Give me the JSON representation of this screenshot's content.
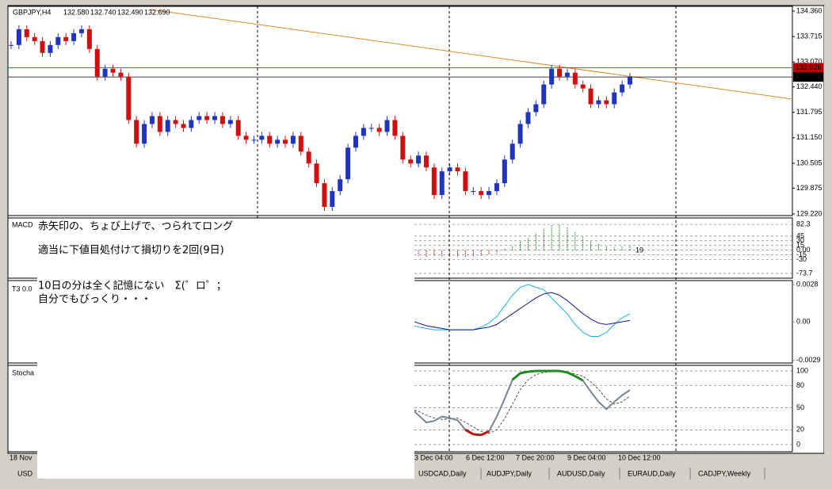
{
  "header": {
    "symbol": "GBPJPY,H4",
    "open": "132.580",
    "high": "132.740",
    "low": "132.490",
    "close": "132.690"
  },
  "main": {
    "ylim": [
      129.18,
      134.48
    ],
    "yticks": [
      {
        "value": 134.36,
        "label": "134.360"
      },
      {
        "value": 133.715,
        "label": "133.715"
      },
      {
        "value": 133.07,
        "label": "133.070"
      },
      {
        "value": 132.44,
        "label": "132.440"
      },
      {
        "value": 131.795,
        "label": "131.795"
      },
      {
        "value": 131.15,
        "label": "131.150"
      },
      {
        "value": 130.505,
        "label": "130.505"
      },
      {
        "value": 129.875,
        "label": "129.875"
      },
      {
        "value": 129.22,
        "label": "129.220"
      }
    ],
    "up_color": "#1f35c0",
    "down_color": "#d01010",
    "closes": [
      133.5,
      133.9,
      133.7,
      133.6,
      133.3,
      133.5,
      133.7,
      133.6,
      133.8,
      133.9,
      133.4,
      132.7,
      132.9,
      132.8,
      132.7,
      131.6,
      131.0,
      131.5,
      131.7,
      131.3,
      131.6,
      131.5,
      131.4,
      131.6,
      131.7,
      131.6,
      131.7,
      131.5,
      131.6,
      131.2,
      131.1,
      131.1,
      131.2,
      131.0,
      131.1,
      131.0,
      131.2,
      130.8,
      130.5,
      130.0,
      129.4,
      129.8,
      130.1,
      130.9,
      131.2,
      131.4,
      131.4,
      131.3,
      131.6,
      131.2,
      130.6,
      130.5,
      130.7,
      130.4,
      129.7,
      130.3,
      130.4,
      130.3,
      129.8,
      129.8,
      129.7,
      129.8,
      130.0,
      130.6,
      131.0,
      131.5,
      131.8,
      132.0,
      132.5,
      132.9,
      132.7,
      132.8,
      132.5,
      132.4,
      132.0,
      132.1,
      132.0,
      132.3,
      132.5,
      132.69
    ],
    "price_lines": [
      {
        "value": 132.926,
        "label": "132.926",
        "color": "#c00000"
      },
      {
        "value": 132.69,
        "label": "132.690",
        "color": "#000000"
      }
    ]
  },
  "macd_pane": {
    "name": "MACD",
    "ylim": [
      -89,
      102.8
    ],
    "yticks": [
      82.3,
      45,
      30,
      15,
      {
        "value": 0,
        "label": "0.00"
      },
      -15,
      -30,
      -73.7
    ],
    "current_value": "19",
    "values": [
      -12,
      -18,
      -20,
      -18,
      -20,
      -22,
      -20,
      -22,
      -20,
      -18,
      -15,
      -10,
      5,
      15,
      30,
      40,
      55,
      70,
      80,
      82,
      75,
      60,
      45,
      30,
      20,
      12,
      10,
      12,
      15
    ],
    "up_color": "#2a8a2a",
    "down_color": "#c02020"
  },
  "t3_pane": {
    "name": "T3 0.0",
    "ylim": [
      -0.0031,
      0.0031
    ],
    "yticks": [
      0.0028,
      {
        "value": 0,
        "label": "0.00"
      },
      -0.0029
    ],
    "series": [
      {
        "color": "#1ab0e8",
        "values": [
          -0.0002,
          -0.0004,
          -0.0005,
          -0.0006,
          -0.0006,
          -0.0006,
          -0.0006,
          -0.0006,
          -0.0006,
          -0.0004,
          -0.0001,
          0.0004,
          0.0012,
          0.002,
          0.0026,
          0.0028,
          0.0026,
          0.0024,
          0.0018,
          0.0012,
          0.0006,
          -0.0002,
          -0.0008,
          -0.0011,
          -0.0011,
          -0.0008,
          -0.0002,
          0.0003,
          0.0006
        ]
      },
      {
        "color": "#14148a",
        "values": [
          0.0001,
          -0.0001,
          -0.0003,
          -0.0004,
          -0.0005,
          -0.0006,
          -0.0006,
          -0.0006,
          -0.0006,
          -0.0005,
          -0.0004,
          -0.0002,
          0.0002,
          0.0006,
          0.001,
          0.0014,
          0.0018,
          0.0021,
          0.0022,
          0.002,
          0.0016,
          0.0011,
          0.0006,
          0.0002,
          -0.0001,
          -0.0002,
          -0.0001,
          0,
          0.0001
        ]
      }
    ]
  },
  "stoch_pane": {
    "name": "Stocha",
    "ylim": [
      -9.8,
      107.6
    ],
    "yticks": [
      100,
      80,
      50,
      20,
      0
    ],
    "main": [
      50,
      40,
      30,
      32,
      38,
      36,
      33,
      20,
      14,
      13,
      18,
      38,
      62,
      88,
      97,
      99,
      100,
      100,
      100,
      100,
      98,
      93,
      87,
      72,
      58,
      48,
      58,
      67,
      74
    ],
    "signal": [
      48,
      45,
      40,
      36,
      34,
      35,
      36,
      30,
      24,
      18,
      15,
      20,
      35,
      55,
      75,
      88,
      95,
      98,
      99,
      99,
      98,
      96,
      93,
      85,
      75,
      62,
      55,
      58,
      66
    ],
    "main_color": "#7a8594",
    "overbought_color": "#1f8a1f",
    "oversold_color": "#c01010",
    "signal_color": "#555555",
    "overbought": 80,
    "oversold": 20
  },
  "time_labels": [
    "18 Nov",
    "3 Dec 04:00",
    "6 Dec 12:00",
    "7 Dec 20:00",
    "9 Dec 04:00",
    "10 Dec 12:00"
  ],
  "tabs": [
    "USD",
    "USDCAD,Daily",
    "AUDJPY,Daily",
    "AUDUSD,Daily",
    "EURAUD,Daily",
    "CADJPY,Weekly"
  ],
  "notes": [
    "赤矢印の、ちょび上げで、つられてロング",
    "適当に下値目処付けて損切りを2回(9日)",
    "10日の分は全く記憶にない　Σ(゜ロ゜；",
    "自分でもびっくり・・・"
  ]
}
